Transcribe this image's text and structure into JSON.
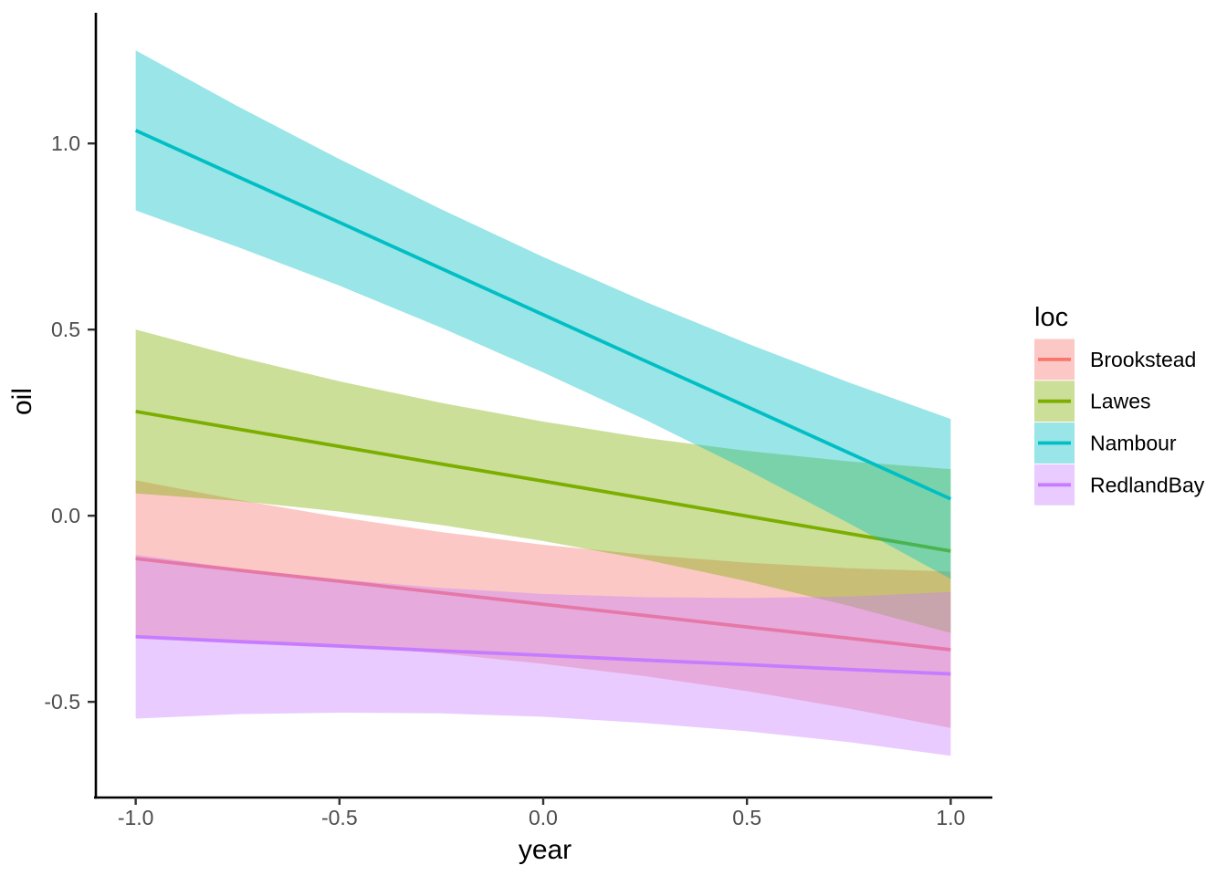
{
  "figure": {
    "background": "#FFFFFF",
    "panel_background": "#FFFFFF"
  },
  "chart_data": {
    "type": "line",
    "title": "",
    "xlabel": "year",
    "ylabel": "oil",
    "grid": false,
    "legend": {
      "title": "loc",
      "position": "right"
    },
    "axis_color": "#000000",
    "tick_label_color": "#4D4D4D",
    "title_color": "#000000",
    "ribbon_opacity": 0.4,
    "xlim": [
      -1.1,
      1.1
    ],
    "ylim": [
      -0.757,
      1.351
    ],
    "x_ticks": [
      -1.0,
      -0.5,
      0.0,
      0.5,
      1.0
    ],
    "x_tick_labels": [
      "-1.0",
      "-0.5",
      "0.0",
      "0.5",
      "1.0"
    ],
    "y_ticks": [
      1.0,
      0.5,
      0.0,
      -0.5
    ],
    "y_tick_labels": [
      "1.0",
      "0.5",
      "0.0",
      "-0.5"
    ],
    "x": [
      -1,
      -0.75,
      -0.5,
      -0.25,
      0,
      0.25,
      0.5,
      0.75,
      1
    ],
    "series": [
      {
        "name": "Brookstead",
        "color": "#F8766D",
        "y": [
          -0.115,
          -0.146,
          -0.176,
          -0.207,
          -0.238,
          -0.268,
          -0.299,
          -0.329,
          -0.36
        ],
        "ci_upper": [
          0.095,
          0.043,
          -0.004,
          -0.044,
          -0.078,
          -0.105,
          -0.126,
          -0.141,
          -0.15
        ],
        "ci_lower": [
          -0.325,
          -0.334,
          -0.349,
          -0.37,
          -0.398,
          -0.431,
          -0.471,
          -0.518,
          -0.57
        ]
      },
      {
        "name": "Lawes",
        "color": "#7CAE00",
        "y": [
          0.28,
          0.233,
          0.186,
          0.139,
          0.093,
          0.046,
          -0.001,
          -0.048,
          -0.095
        ],
        "ci_upper": [
          0.5,
          0.427,
          0.361,
          0.303,
          0.253,
          0.209,
          0.174,
          0.146,
          0.125
        ],
        "ci_lower": [
          0.06,
          0.04,
          0.011,
          -0.025,
          -0.068,
          -0.118,
          -0.176,
          -0.242,
          -0.315
        ]
      },
      {
        "name": "Nambour",
        "color": "#00BFC4",
        "y": [
          1.035,
          0.911,
          0.788,
          0.664,
          0.54,
          0.416,
          0.293,
          0.169,
          0.045
        ],
        "ci_upper": [
          1.25,
          1.1,
          0.958,
          0.823,
          0.695,
          0.575,
          0.463,
          0.358,
          0.26
        ],
        "ci_lower": [
          0.82,
          0.722,
          0.618,
          0.505,
          0.385,
          0.258,
          0.123,
          -0.02,
          -0.17
        ]
      },
      {
        "name": "RedlandBay",
        "color": "#C77CFF",
        "y": [
          -0.325,
          -0.338,
          -0.35,
          -0.363,
          -0.375,
          -0.388,
          -0.4,
          -0.413,
          -0.425
        ],
        "ci_upper": [
          -0.105,
          -0.142,
          -0.171,
          -0.194,
          -0.21,
          -0.219,
          -0.221,
          -0.217,
          -0.205
        ],
        "ci_lower": [
          -0.545,
          -0.533,
          -0.529,
          -0.531,
          -0.54,
          -0.557,
          -0.579,
          -0.608,
          -0.645
        ]
      }
    ]
  }
}
